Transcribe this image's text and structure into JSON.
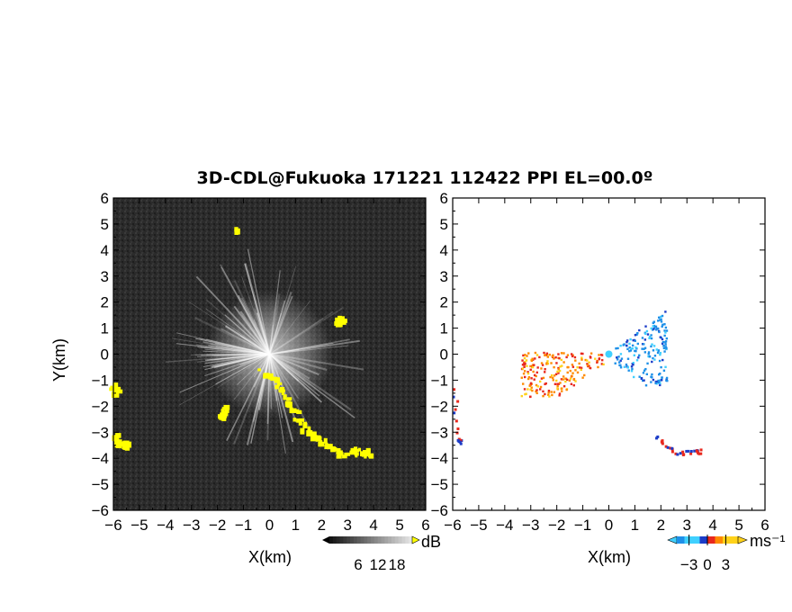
{
  "title": "3D-CDL@Fukuoka 171221 112422 PPI EL=00.0º",
  "chart_data": [
    {
      "type": "heatmap",
      "name": "snr-ppi",
      "xlabel": "X(km)",
      "ylabel": "Y(km)",
      "xlim": [
        -6,
        6
      ],
      "ylim": [
        -6,
        6
      ],
      "ticks": [
        -6,
        -5,
        -4,
        -3,
        -2,
        -1,
        0,
        1,
        2,
        3,
        4,
        5,
        6
      ],
      "background_color": "#2a2a2a",
      "highlight_color": "#ffff00",
      "colorbar": {
        "unit": "dB",
        "ticks": [
          6,
          12,
          18
        ]
      },
      "bright_echo_regions": [
        {
          "points": [
            [
              -0.3,
              -0.7
            ],
            [
              0.2,
              -1.0
            ],
            [
              0.6,
              -1.6
            ],
            [
              0.9,
              -2.2
            ],
            [
              1.3,
              -2.8
            ],
            [
              1.8,
              -3.3
            ],
            [
              2.3,
              -3.5
            ],
            [
              2.8,
              -3.9
            ],
            [
              3.4,
              -3.7
            ],
            [
              3.8,
              -3.8
            ]
          ]
        },
        {
          "points": [
            [
              -6.0,
              -1.2
            ],
            [
              -5.9,
              -1.4
            ]
          ]
        },
        {
          "points": [
            [
              -6.0,
              -3.1
            ],
            [
              -5.8,
              -3.4
            ],
            [
              -5.6,
              -3.5
            ]
          ]
        },
        {
          "points": [
            [
              -1.6,
              -2.1
            ],
            [
              -1.8,
              -2.4
            ]
          ]
        },
        {
          "points": [
            [
              -1.3,
              4.8
            ]
          ]
        },
        {
          "points": [
            [
              2.6,
              1.2
            ],
            [
              2.8,
              1.3
            ]
          ]
        }
      ]
    },
    {
      "type": "heatmap",
      "name": "velocity-ppi",
      "xlabel": "X(km)",
      "xlim": [
        -6,
        6
      ],
      "ylim": [
        -6,
        6
      ],
      "ticks": [
        -6,
        -5,
        -4,
        -3,
        -2,
        -1,
        0,
        1,
        2,
        3,
        4,
        5,
        6
      ],
      "colorbar": {
        "unit": "ms⁻¹",
        "ticks": [
          -3,
          0,
          3
        ],
        "range": [
          -5,
          5
        ]
      },
      "features": [
        {
          "label": "approaching-west",
          "velocity": 3,
          "region": [
            [
              -3.4,
              0.1
            ],
            [
              -0.2,
              -1.6
            ]
          ]
        },
        {
          "label": "receding-east",
          "velocity": -3,
          "region": [
            [
              0.2,
              1.7
            ],
            [
              2.2,
              -1.2
            ]
          ]
        },
        {
          "label": "echo-band-southeast",
          "velocity": 4,
          "points": [
            [
              1.8,
              -3.2
            ],
            [
              2.3,
              -3.6
            ],
            [
              2.8,
              -3.8
            ],
            [
              3.4,
              -3.7
            ]
          ]
        },
        {
          "label": "echo-west-edge",
          "velocity": 4,
          "points": [
            [
              -6.0,
              -1.3
            ],
            [
              -5.8,
              -3.3
            ]
          ]
        }
      ]
    }
  ]
}
